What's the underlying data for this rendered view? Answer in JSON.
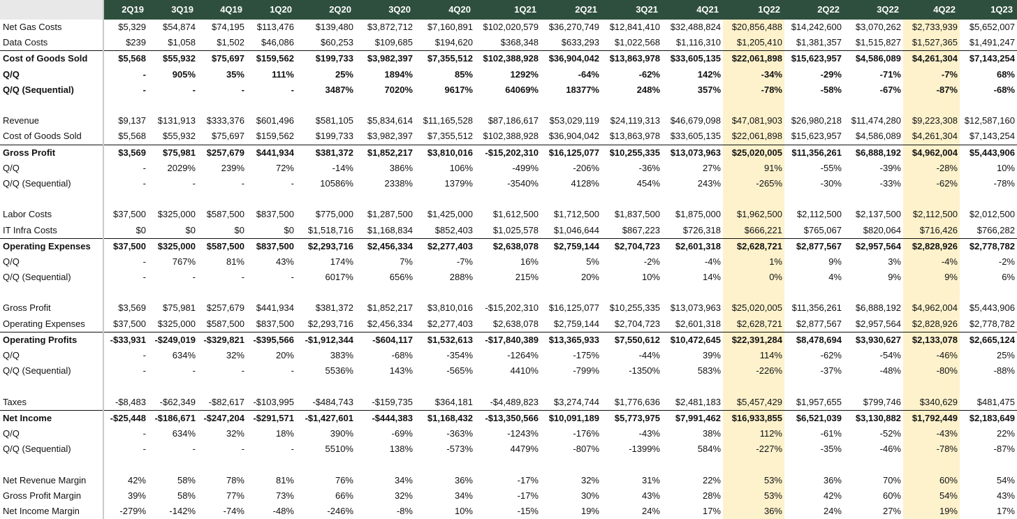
{
  "colors": {
    "header_bg": "#2e4f3e",
    "header_text": "#ffffff",
    "highlight": "#fdf2cc",
    "rule": "#111111"
  },
  "highlight_quarters": [
    "1Q22",
    "4Q22"
  ],
  "quarters": [
    "2Q19",
    "3Q19",
    "4Q19",
    "1Q20",
    "2Q20",
    "3Q20",
    "4Q20",
    "1Q21",
    "2Q21",
    "3Q21",
    "4Q21",
    "1Q22",
    "2Q22",
    "3Q22",
    "4Q22",
    "1Q23"
  ],
  "rows": [
    {
      "label": "Net Gas Costs",
      "bold": false,
      "topline": false,
      "values": [
        "$5,329",
        "$54,874",
        "$74,195",
        "$113,476",
        "$139,480",
        "$3,872,712",
        "$7,160,891",
        "$102,020,579",
        "$36,270,749",
        "$12,841,410",
        "$32,488,824",
        "$20,856,488",
        "$14,242,600",
        "$3,070,262",
        "$2,733,939",
        "$5,652,007"
      ]
    },
    {
      "label": "Data Costs",
      "bold": false,
      "topline": false,
      "values": [
        "$239",
        "$1,058",
        "$1,502",
        "$46,086",
        "$60,253",
        "$109,685",
        "$194,620",
        "$368,348",
        "$633,293",
        "$1,022,568",
        "$1,116,310",
        "$1,205,410",
        "$1,381,357",
        "$1,515,827",
        "$1,527,365",
        "$1,491,247"
      ]
    },
    {
      "label": "Cost of Goods Sold",
      "bold": true,
      "topline": true,
      "values": [
        "$5,568",
        "$55,932",
        "$75,697",
        "$159,562",
        "$199,733",
        "$3,982,397",
        "$7,355,512",
        "$102,388,928",
        "$36,904,042",
        "$13,863,978",
        "$33,605,135",
        "$22,061,898",
        "$15,623,957",
        "$4,586,089",
        "$4,261,304",
        "$7,143,254"
      ]
    },
    {
      "label": "Q/Q",
      "bold": true,
      "topline": false,
      "values": [
        "-",
        "905%",
        "35%",
        "111%",
        "25%",
        "1894%",
        "85%",
        "1292%",
        "-64%",
        "-62%",
        "142%",
        "-34%",
        "-29%",
        "-71%",
        "-7%",
        "68%"
      ]
    },
    {
      "label": "Q/Q (Sequential)",
      "bold": true,
      "topline": false,
      "values": [
        "-",
        "-",
        "-",
        "-",
        "3487%",
        "7020%",
        "9617%",
        "64069%",
        "18377%",
        "248%",
        "357%",
        "-78%",
        "-58%",
        "-67%",
        "-87%",
        "-68%"
      ]
    },
    {
      "label": "",
      "blank": true
    },
    {
      "label": "Revenue",
      "bold": false,
      "topline": false,
      "values": [
        "$9,137",
        "$131,913",
        "$333,376",
        "$601,496",
        "$581,105",
        "$5,834,614",
        "$11,165,528",
        "$87,186,617",
        "$53,029,119",
        "$24,119,313",
        "$46,679,098",
        "$47,081,903",
        "$26,980,218",
        "$11,474,280",
        "$9,223,308",
        "$12,587,160"
      ]
    },
    {
      "label": "Cost of Goods Sold",
      "bold": false,
      "topline": false,
      "values": [
        "$5,568",
        "$55,932",
        "$75,697",
        "$159,562",
        "$199,733",
        "$3,982,397",
        "$7,355,512",
        "$102,388,928",
        "$36,904,042",
        "$13,863,978",
        "$33,605,135",
        "$22,061,898",
        "$15,623,957",
        "$4,586,089",
        "$4,261,304",
        "$7,143,254"
      ]
    },
    {
      "label": "Gross Profit",
      "bold": true,
      "topline": true,
      "values": [
        "$3,569",
        "$75,981",
        "$257,679",
        "$441,934",
        "$381,372",
        "$1,852,217",
        "$3,810,016",
        "-$15,202,310",
        "$16,125,077",
        "$10,255,335",
        "$13,073,963",
        "$25,020,005",
        "$11,356,261",
        "$6,888,192",
        "$4,962,004",
        "$5,443,906"
      ]
    },
    {
      "label": "Q/Q",
      "bold": false,
      "topline": false,
      "values": [
        "-",
        "2029%",
        "239%",
        "72%",
        "-14%",
        "386%",
        "106%",
        "-499%",
        "-206%",
        "-36%",
        "27%",
        "91%",
        "-55%",
        "-39%",
        "-28%",
        "10%"
      ]
    },
    {
      "label": "Q/Q (Sequential)",
      "bold": false,
      "topline": false,
      "values": [
        "-",
        "-",
        "-",
        "-",
        "10586%",
        "2338%",
        "1379%",
        "-3540%",
        "4128%",
        "454%",
        "243%",
        "-265%",
        "-30%",
        "-33%",
        "-62%",
        "-78%"
      ]
    },
    {
      "label": "",
      "blank": true
    },
    {
      "label": "Labor Costs",
      "bold": false,
      "topline": false,
      "values": [
        "$37,500",
        "$325,000",
        "$587,500",
        "$837,500",
        "$775,000",
        "$1,287,500",
        "$1,425,000",
        "$1,612,500",
        "$1,712,500",
        "$1,837,500",
        "$1,875,000",
        "$1,962,500",
        "$2,112,500",
        "$2,137,500",
        "$2,112,500",
        "$2,012,500"
      ]
    },
    {
      "label": "IT Infra Costs",
      "bold": false,
      "topline": false,
      "values": [
        "$0",
        "$0",
        "$0",
        "$0",
        "$1,518,716",
        "$1,168,834",
        "$852,403",
        "$1,025,578",
        "$1,046,644",
        "$867,223",
        "$726,318",
        "$666,221",
        "$765,067",
        "$820,064",
        "$716,426",
        "$766,282"
      ]
    },
    {
      "label": "Operating Expenses",
      "bold": true,
      "topline": true,
      "values": [
        "$37,500",
        "$325,000",
        "$587,500",
        "$837,500",
        "$2,293,716",
        "$2,456,334",
        "$2,277,403",
        "$2,638,078",
        "$2,759,144",
        "$2,704,723",
        "$2,601,318",
        "$2,628,721",
        "$2,877,567",
        "$2,957,564",
        "$2,828,926",
        "$2,778,782"
      ]
    },
    {
      "label": "Q/Q",
      "bold": false,
      "topline": false,
      "values": [
        "-",
        "767%",
        "81%",
        "43%",
        "174%",
        "7%",
        "-7%",
        "16%",
        "5%",
        "-2%",
        "-4%",
        "1%",
        "9%",
        "3%",
        "-4%",
        "-2%"
      ]
    },
    {
      "label": "Q/Q (Sequential)",
      "bold": false,
      "topline": false,
      "values": [
        "-",
        "-",
        "-",
        "-",
        "6017%",
        "656%",
        "288%",
        "215%",
        "20%",
        "10%",
        "14%",
        "0%",
        "4%",
        "9%",
        "9%",
        "6%"
      ]
    },
    {
      "label": "",
      "blank": true
    },
    {
      "label": "Gross Profit",
      "bold": false,
      "topline": false,
      "values": [
        "$3,569",
        "$75,981",
        "$257,679",
        "$441,934",
        "$381,372",
        "$1,852,217",
        "$3,810,016",
        "-$15,202,310",
        "$16,125,077",
        "$10,255,335",
        "$13,073,963",
        "$25,020,005",
        "$11,356,261",
        "$6,888,192",
        "$4,962,004",
        "$5,443,906"
      ]
    },
    {
      "label": "Operating Expenses",
      "bold": false,
      "topline": false,
      "values": [
        "$37,500",
        "$325,000",
        "$587,500",
        "$837,500",
        "$2,293,716",
        "$2,456,334",
        "$2,277,403",
        "$2,638,078",
        "$2,759,144",
        "$2,704,723",
        "$2,601,318",
        "$2,628,721",
        "$2,877,567",
        "$2,957,564",
        "$2,828,926",
        "$2,778,782"
      ]
    },
    {
      "label": "Operating Profits",
      "bold": true,
      "topline": true,
      "values": [
        "-$33,931",
        "-$249,019",
        "-$329,821",
        "-$395,566",
        "-$1,912,344",
        "-$604,117",
        "$1,532,613",
        "-$17,840,389",
        "$13,365,933",
        "$7,550,612",
        "$10,472,645",
        "$22,391,284",
        "$8,478,694",
        "$3,930,627",
        "$2,133,078",
        "$2,665,124"
      ]
    },
    {
      "label": "Q/Q",
      "bold": false,
      "topline": false,
      "values": [
        "-",
        "634%",
        "32%",
        "20%",
        "383%",
        "-68%",
        "-354%",
        "-1264%",
        "-175%",
        "-44%",
        "39%",
        "114%",
        "-62%",
        "-54%",
        "-46%",
        "25%"
      ]
    },
    {
      "label": "Q/Q (Sequential)",
      "bold": false,
      "topline": false,
      "values": [
        "-",
        "-",
        "-",
        "-",
        "5536%",
        "143%",
        "-565%",
        "4410%",
        "-799%",
        "-1350%",
        "583%",
        "-226%",
        "-37%",
        "-48%",
        "-80%",
        "-88%"
      ]
    },
    {
      "label": "",
      "blank": true
    },
    {
      "label": "Taxes",
      "bold": false,
      "topline": false,
      "values": [
        "-$8,483",
        "-$62,349",
        "-$82,617",
        "-$103,995",
        "-$484,743",
        "-$159,735",
        "$364,181",
        "-$4,489,823",
        "$3,274,744",
        "$1,776,636",
        "$2,481,183",
        "$5,457,429",
        "$1,957,655",
        "$799,746",
        "$340,629",
        "$481,475"
      ]
    },
    {
      "label": "Net Income",
      "bold": true,
      "topline": true,
      "values": [
        "-$25,448",
        "-$186,671",
        "-$247,204",
        "-$291,571",
        "-$1,427,601",
        "-$444,383",
        "$1,168,432",
        "-$13,350,566",
        "$10,091,189",
        "$5,773,975",
        "$7,991,462",
        "$16,933,855",
        "$6,521,039",
        "$3,130,882",
        "$1,792,449",
        "$2,183,649"
      ]
    },
    {
      "label": "Q/Q",
      "bold": false,
      "topline": false,
      "values": [
        "-",
        "634%",
        "32%",
        "18%",
        "390%",
        "-69%",
        "-363%",
        "-1243%",
        "-176%",
        "-43%",
        "38%",
        "112%",
        "-61%",
        "-52%",
        "-43%",
        "22%"
      ]
    },
    {
      "label": "Q/Q (Sequential)",
      "bold": false,
      "topline": false,
      "values": [
        "-",
        "-",
        "-",
        "-",
        "5510%",
        "138%",
        "-573%",
        "4479%",
        "-807%",
        "-1399%",
        "584%",
        "-227%",
        "-35%",
        "-46%",
        "-78%",
        "-87%"
      ]
    },
    {
      "label": "",
      "blank": true
    },
    {
      "label": "Net Revenue Margin",
      "bold": false,
      "topline": false,
      "values": [
        "42%",
        "58%",
        "78%",
        "81%",
        "76%",
        "34%",
        "36%",
        "-17%",
        "32%",
        "31%",
        "22%",
        "53%",
        "36%",
        "70%",
        "60%",
        "54%"
      ]
    },
    {
      "label": "Gross Profit Margin",
      "bold": false,
      "topline": false,
      "values": [
        "39%",
        "58%",
        "77%",
        "73%",
        "66%",
        "32%",
        "34%",
        "-17%",
        "30%",
        "43%",
        "28%",
        "53%",
        "42%",
        "60%",
        "54%",
        "43%"
      ]
    },
    {
      "label": "Net Income Margin",
      "bold": false,
      "topline": false,
      "values": [
        "-279%",
        "-142%",
        "-74%",
        "-48%",
        "-246%",
        "-8%",
        "10%",
        "-15%",
        "19%",
        "24%",
        "17%",
        "36%",
        "24%",
        "27%",
        "19%",
        "17%"
      ]
    }
  ]
}
